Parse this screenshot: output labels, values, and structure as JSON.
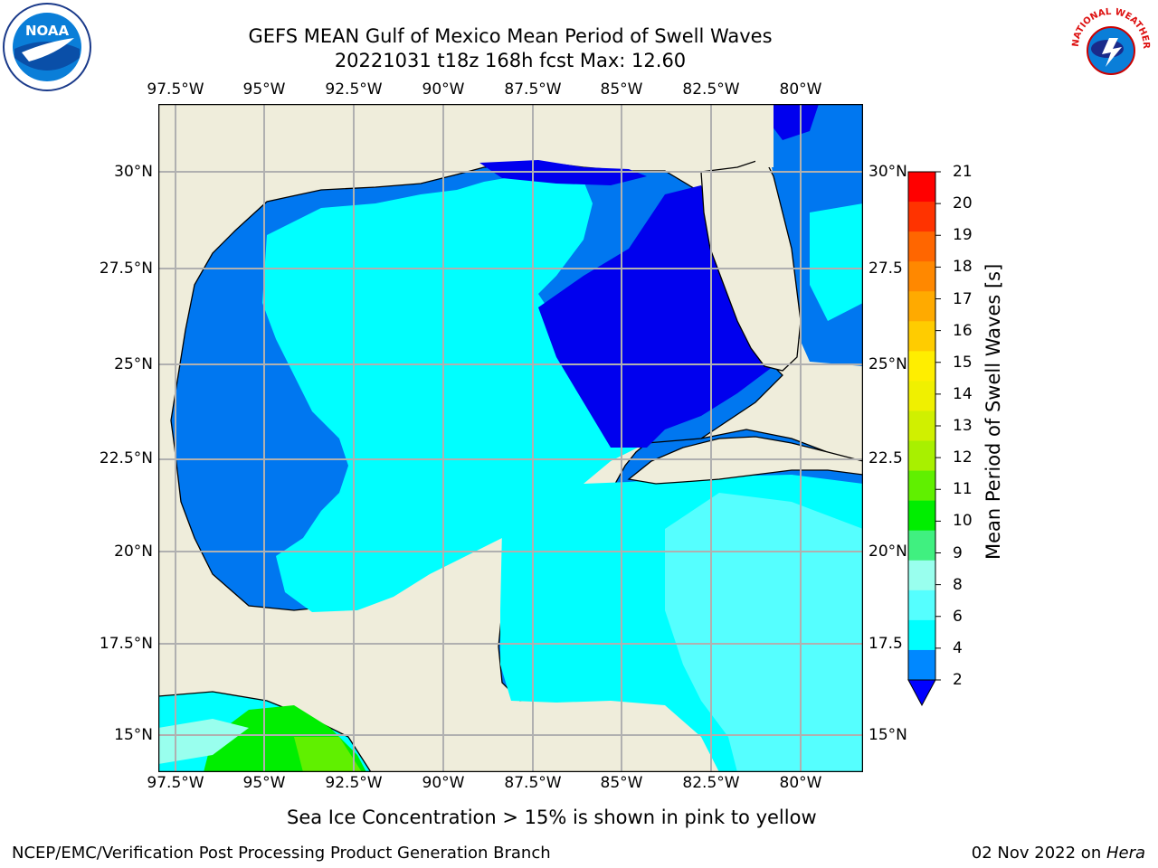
{
  "header": {
    "title_line1": "GEFS MEAN Gulf of Mexico Mean Period of Swell Waves",
    "title_line2": "20221031 t18z 168h fcst   Max: 12.60"
  },
  "logos": {
    "left": "noara-logo",
    "right": "nws-logo",
    "noaa_text": "NOAA",
    "nws_text": "NATIONAL WEATHER SERVICE"
  },
  "map": {
    "lon_labels": [
      "97.5°W",
      "95°W",
      "92.5°W",
      "90°W",
      "87.5°W",
      "85°W",
      "82.5°W",
      "80°W"
    ],
    "lat_labels_left": [
      "30°N",
      "27.5°N",
      "25°N",
      "22.5°N",
      "20°N",
      "17.5°N",
      "15°N"
    ],
    "lat_labels_right": [
      "30°N",
      "27.5",
      "25°N",
      "22.5",
      "20°N",
      "17.5",
      "15°N"
    ],
    "land_color": "#efeddb",
    "grid_color": "#b0b0b0"
  },
  "colorbar": {
    "label": "Mean Period of Swell Waves [s]",
    "ticks": [
      "21",
      "20",
      "19",
      "18",
      "17",
      "16",
      "15",
      "14",
      "13",
      "12",
      "11",
      "10",
      "9",
      "8",
      "6",
      "4",
      "2"
    ],
    "colors": [
      "#ff0000",
      "#ff3300",
      "#ff6600",
      "#ff8800",
      "#ffaa00",
      "#ffcc00",
      "#ffee00",
      "#f0f000",
      "#d0f000",
      "#a8f000",
      "#60f000",
      "#00ee00",
      "#40f080",
      "#99ffee",
      "#55ffff",
      "#00ffff",
      "#0088ff"
    ],
    "extend_color": "#0000ff"
  },
  "note": "Sea Ice Concentration > 15% is shown in pink to yellow",
  "footer": {
    "left": "NCEP/EMC/Verification Post Processing Product Generation Branch",
    "date": "02 Nov 2022 on ",
    "machine": "Hera"
  }
}
